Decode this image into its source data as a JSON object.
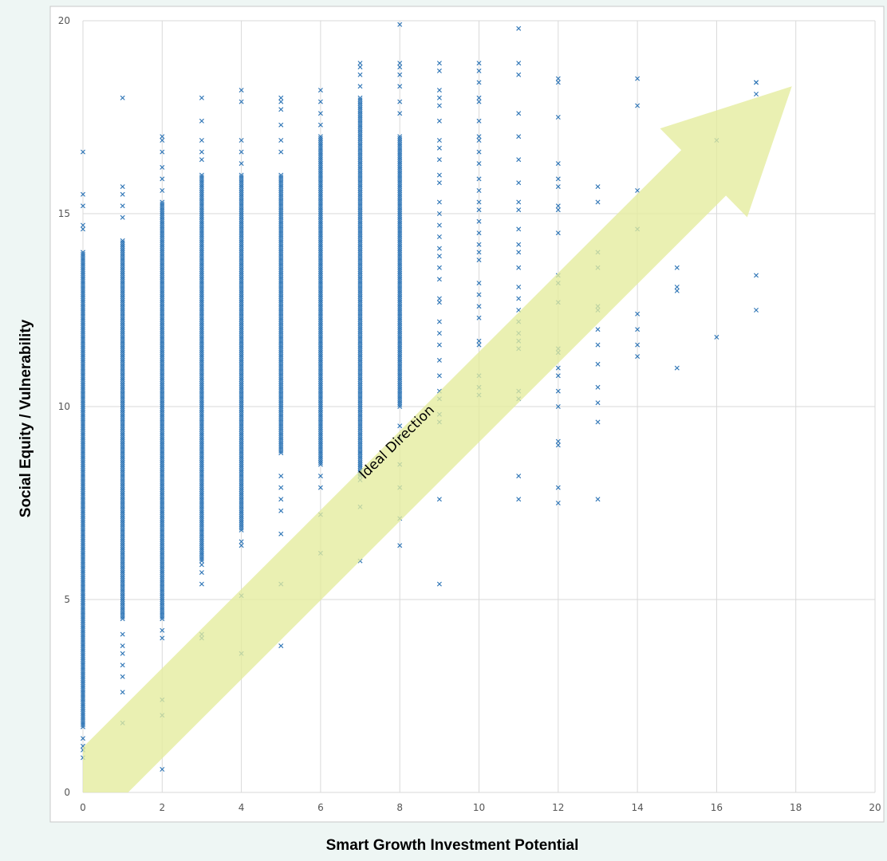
{
  "chart_data": {
    "type": "scatter",
    "xlabel": "Smart Growth Investment Potential",
    "ylabel": "Social Equity / Vulnerability",
    "xlim": [
      0,
      20
    ],
    "ylim": [
      0,
      20
    ],
    "x_ticks": [
      "0",
      "2",
      "4",
      "6",
      "8",
      "10",
      "12",
      "14",
      "16",
      "18",
      "20"
    ],
    "y_ticks": [
      "0",
      "5",
      "10",
      "15",
      "20"
    ],
    "grid": true,
    "marker": "x",
    "marker_color": "#2e75b6",
    "annotation": {
      "text": "Ideal Direction",
      "color": "#e4ec9c"
    },
    "series": [
      {
        "dense_ranges": [
          {
            "x": 0,
            "y": [
              1.7,
              14.0
            ]
          },
          {
            "x": 1,
            "y": [
              4.5,
              14.3
            ]
          },
          {
            "x": 2,
            "y": [
              4.5,
              15.3
            ]
          },
          {
            "x": 3,
            "y": [
              6.0,
              16.0
            ]
          },
          {
            "x": 4,
            "y": [
              6.8,
              16.0
            ]
          },
          {
            "x": 5,
            "y": [
              8.8,
              16.0
            ]
          },
          {
            "x": 6,
            "y": [
              8.5,
              17.0
            ]
          },
          {
            "x": 7,
            "y": [
              8.2,
              18.0
            ]
          },
          {
            "x": 8,
            "y": [
              10.0,
              17.0
            ]
          }
        ],
        "points": [
          [
            0,
            16.6
          ],
          [
            0,
            15.5
          ],
          [
            0,
            15.2
          ],
          [
            0,
            14.7
          ],
          [
            0,
            14.6
          ],
          [
            0,
            1.4
          ],
          [
            0,
            1.2
          ],
          [
            0,
            1.1
          ],
          [
            0,
            0.9
          ],
          [
            1,
            18.0
          ],
          [
            1,
            15.7
          ],
          [
            1,
            15.5
          ],
          [
            1,
            15.2
          ],
          [
            1,
            14.9
          ],
          [
            1,
            4.1
          ],
          [
            1,
            3.8
          ],
          [
            1,
            3.6
          ],
          [
            1,
            3.3
          ],
          [
            1,
            3.0
          ],
          [
            1,
            2.6
          ],
          [
            1,
            1.8
          ],
          [
            2,
            17.0
          ],
          [
            2,
            16.9
          ],
          [
            2,
            16.6
          ],
          [
            2,
            16.2
          ],
          [
            2,
            15.9
          ],
          [
            2,
            15.6
          ],
          [
            2,
            4.2
          ],
          [
            2,
            4.0
          ],
          [
            2,
            2.4
          ],
          [
            2,
            2.0
          ],
          [
            2,
            0.6
          ],
          [
            3,
            18.0
          ],
          [
            3,
            17.4
          ],
          [
            3,
            16.9
          ],
          [
            3,
            16.6
          ],
          [
            3,
            16.4
          ],
          [
            3,
            5.9
          ],
          [
            3,
            5.7
          ],
          [
            3,
            5.4
          ],
          [
            3,
            4.1
          ],
          [
            3,
            4.0
          ],
          [
            4,
            18.2
          ],
          [
            4,
            17.9
          ],
          [
            4,
            16.9
          ],
          [
            4,
            16.6
          ],
          [
            4,
            16.3
          ],
          [
            4,
            6.5
          ],
          [
            4,
            6.4
          ],
          [
            4,
            5.1
          ],
          [
            4,
            3.6
          ],
          [
            5,
            18.0
          ],
          [
            5,
            17.9
          ],
          [
            5,
            17.7
          ],
          [
            5,
            17.3
          ],
          [
            5,
            16.9
          ],
          [
            5,
            16.6
          ],
          [
            5,
            8.2
          ],
          [
            5,
            7.9
          ],
          [
            5,
            7.6
          ],
          [
            5,
            7.3
          ],
          [
            5,
            6.7
          ],
          [
            5,
            5.4
          ],
          [
            5,
            3.8
          ],
          [
            6,
            18.2
          ],
          [
            6,
            17.9
          ],
          [
            6,
            17.6
          ],
          [
            6,
            17.3
          ],
          [
            6,
            8.2
          ],
          [
            6,
            7.9
          ],
          [
            6,
            7.2
          ],
          [
            6,
            6.2
          ],
          [
            7,
            18.9
          ],
          [
            7,
            18.8
          ],
          [
            7,
            18.6
          ],
          [
            7,
            18.3
          ],
          [
            7,
            8.8
          ],
          [
            7,
            8.5
          ],
          [
            7,
            8.1
          ],
          [
            7,
            7.4
          ],
          [
            7,
            6.0
          ],
          [
            8,
            19.9
          ],
          [
            8,
            18.9
          ],
          [
            8,
            18.8
          ],
          [
            8,
            18.6
          ],
          [
            8,
            18.3
          ],
          [
            8,
            17.9
          ],
          [
            8,
            17.6
          ],
          [
            8,
            9.5
          ],
          [
            8,
            9.2
          ],
          [
            8,
            8.5
          ],
          [
            8,
            7.9
          ],
          [
            8,
            7.1
          ],
          [
            8,
            6.4
          ],
          [
            9,
            18.9
          ],
          [
            9,
            18.7
          ],
          [
            9,
            18.2
          ],
          [
            9,
            18.0
          ],
          [
            9,
            17.8
          ],
          [
            9,
            17.4
          ],
          [
            9,
            16.9
          ],
          [
            9,
            16.7
          ],
          [
            9,
            16.4
          ],
          [
            9,
            16.0
          ],
          [
            9,
            15.8
          ],
          [
            9,
            15.3
          ],
          [
            9,
            15.0
          ],
          [
            9,
            14.7
          ],
          [
            9,
            14.4
          ],
          [
            9,
            14.1
          ],
          [
            9,
            13.9
          ],
          [
            9,
            13.6
          ],
          [
            9,
            13.3
          ],
          [
            9,
            12.8
          ],
          [
            9,
            12.7
          ],
          [
            9,
            12.2
          ],
          [
            9,
            11.9
          ],
          [
            9,
            11.6
          ],
          [
            9,
            11.2
          ],
          [
            9,
            10.8
          ],
          [
            9,
            10.4
          ],
          [
            9,
            10.2
          ],
          [
            9,
            9.8
          ],
          [
            9,
            9.6
          ],
          [
            9,
            7.6
          ],
          [
            9,
            5.4
          ],
          [
            10,
            18.9
          ],
          [
            10,
            18.7
          ],
          [
            10,
            18.4
          ],
          [
            10,
            18.0
          ],
          [
            10,
            17.9
          ],
          [
            10,
            17.4
          ],
          [
            10,
            17.0
          ],
          [
            10,
            16.9
          ],
          [
            10,
            16.6
          ],
          [
            10,
            16.3
          ],
          [
            10,
            15.9
          ],
          [
            10,
            15.6
          ],
          [
            10,
            15.3
          ],
          [
            10,
            15.1
          ],
          [
            10,
            14.8
          ],
          [
            10,
            14.5
          ],
          [
            10,
            14.2
          ],
          [
            10,
            14.0
          ],
          [
            10,
            13.8
          ],
          [
            10,
            13.2
          ],
          [
            10,
            12.9
          ],
          [
            10,
            12.6
          ],
          [
            10,
            12.3
          ],
          [
            10,
            11.7
          ],
          [
            10,
            11.6
          ],
          [
            10,
            10.8
          ],
          [
            10,
            10.5
          ],
          [
            10,
            10.3
          ],
          [
            11,
            19.8
          ],
          [
            11,
            18.9
          ],
          [
            11,
            18.6
          ],
          [
            11,
            17.6
          ],
          [
            11,
            17.0
          ],
          [
            11,
            16.4
          ],
          [
            11,
            15.8
          ],
          [
            11,
            15.3
          ],
          [
            11,
            15.1
          ],
          [
            11,
            14.6
          ],
          [
            11,
            14.2
          ],
          [
            11,
            14.0
          ],
          [
            11,
            13.6
          ],
          [
            11,
            13.1
          ],
          [
            11,
            12.8
          ],
          [
            11,
            12.5
          ],
          [
            11,
            12.2
          ],
          [
            11,
            11.9
          ],
          [
            11,
            11.7
          ],
          [
            11,
            11.5
          ],
          [
            11,
            10.4
          ],
          [
            11,
            10.2
          ],
          [
            11,
            8.2
          ],
          [
            11,
            7.6
          ],
          [
            12,
            18.5
          ],
          [
            12,
            18.4
          ],
          [
            12,
            17.5
          ],
          [
            12,
            16.3
          ],
          [
            12,
            15.9
          ],
          [
            12,
            15.7
          ],
          [
            12,
            15.2
          ],
          [
            12,
            15.1
          ],
          [
            12,
            14.5
          ],
          [
            12,
            13.4
          ],
          [
            12,
            13.2
          ],
          [
            12,
            12.7
          ],
          [
            12,
            11.5
          ],
          [
            12,
            11.4
          ],
          [
            12,
            11.0
          ],
          [
            12,
            10.8
          ],
          [
            12,
            10.4
          ],
          [
            12,
            10.0
          ],
          [
            12,
            9.1
          ],
          [
            12,
            9.0
          ],
          [
            12,
            7.9
          ],
          [
            12,
            7.5
          ],
          [
            13,
            15.7
          ],
          [
            13,
            15.3
          ],
          [
            13,
            14.0
          ],
          [
            13,
            13.6
          ],
          [
            13,
            12.6
          ],
          [
            13,
            12.5
          ],
          [
            13,
            12.0
          ],
          [
            13,
            11.6
          ],
          [
            13,
            11.1
          ],
          [
            13,
            10.5
          ],
          [
            13,
            10.1
          ],
          [
            13,
            9.6
          ],
          [
            13,
            7.6
          ],
          [
            14,
            18.5
          ],
          [
            14,
            17.8
          ],
          [
            14,
            15.6
          ],
          [
            14,
            14.6
          ],
          [
            14,
            12.4
          ],
          [
            14,
            12.0
          ],
          [
            14,
            11.6
          ],
          [
            14,
            11.3
          ],
          [
            15,
            13.6
          ],
          [
            15,
            13.1
          ],
          [
            15,
            13.0
          ],
          [
            15,
            11.0
          ],
          [
            16,
            16.9
          ],
          [
            16,
            11.8
          ],
          [
            17,
            18.4
          ],
          [
            17,
            18.4
          ],
          [
            17,
            18.1
          ],
          [
            17,
            13.4
          ],
          [
            17,
            12.5
          ]
        ]
      }
    ]
  }
}
